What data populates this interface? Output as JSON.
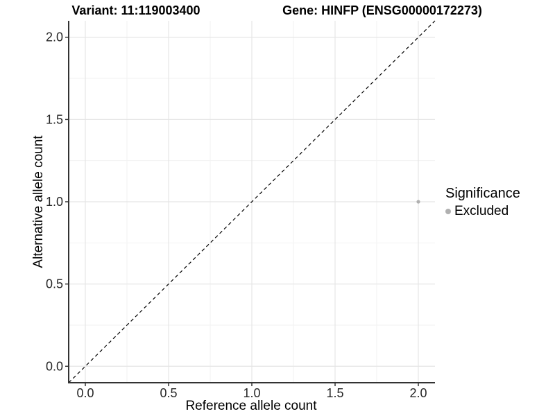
{
  "chart_data": {
    "type": "scatter",
    "title_left": "Variant: 11:119003400",
    "title_right": "Gene: HINFP (ENSG00000172273)",
    "xlabel": "Reference allele count",
    "ylabel": "Alternative allele count",
    "xlim": [
      -0.1,
      2.1
    ],
    "ylim": [
      -0.1,
      2.1
    ],
    "xticks": [
      0,
      0.5,
      1,
      1.5,
      2
    ],
    "xtick_labels": [
      "0.0",
      "0.5",
      "1.0",
      "1.5",
      "2.0"
    ],
    "yticks": [
      0,
      0.5,
      1,
      1.5,
      2
    ],
    "ytick_labels": [
      "0.0",
      "0.5",
      "1.0",
      "1.5",
      "2.0"
    ],
    "minor_step": 0.25,
    "grid": true,
    "points": [
      {
        "x": 2.0,
        "y": 1.0,
        "series": "Excluded"
      }
    ],
    "identity_line": {
      "style": "dashed",
      "color": "#000000",
      "slope": 1,
      "intercept": 0
    },
    "legend": {
      "position": "right",
      "title": "Significance",
      "entries": [
        {
          "label": "Excluded",
          "color": "#b0b0b0"
        }
      ]
    },
    "colors": {
      "point": "#b0b0b0",
      "grid_major": "#e5e5e5",
      "grid_minor": "#f2f2f2",
      "axis_line": "#333333",
      "tick_text": "#262626"
    }
  }
}
